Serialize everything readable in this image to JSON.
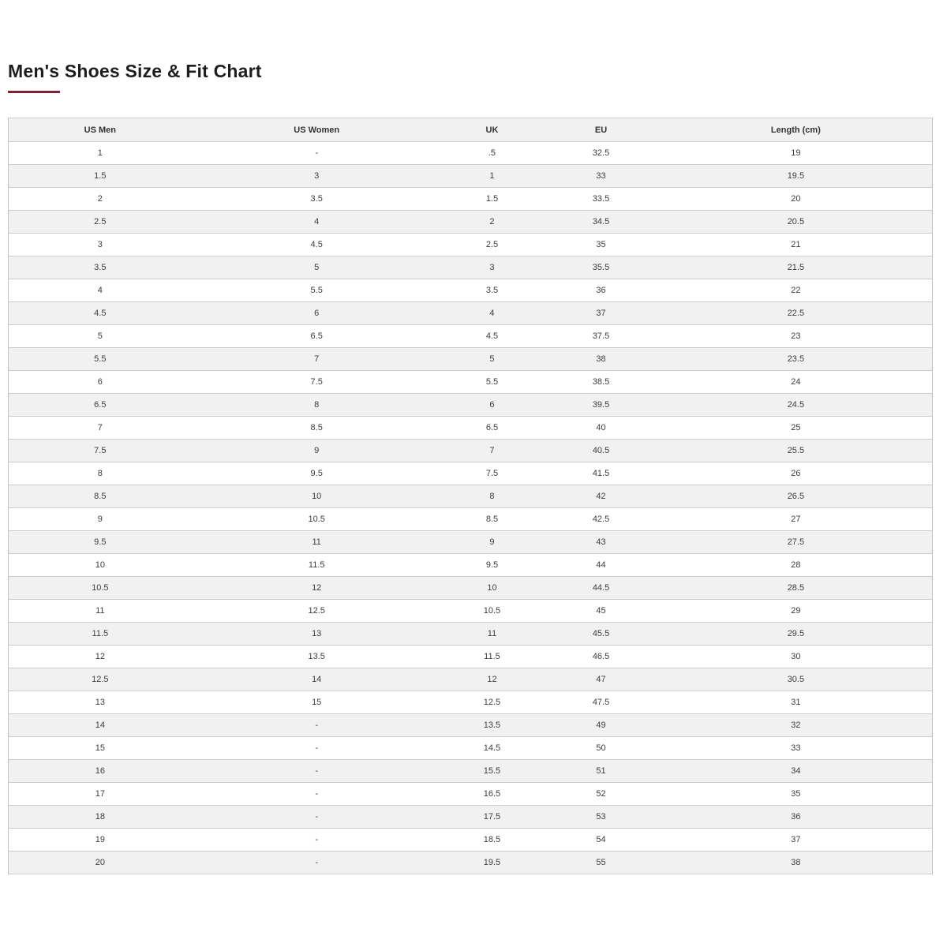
{
  "page": {
    "title": "Men's Shoes Size & Fit Chart"
  },
  "styles": {
    "accent_color": "#7d2231",
    "row_alt_color": "#f1f1f1",
    "border_color": "#cccccc",
    "title_color": "#1d1d1d",
    "cell_text_color": "#3d3d3d"
  },
  "table": {
    "columns": [
      "US Men",
      "US Women",
      "UK",
      "EU",
      "Length (cm)"
    ],
    "rows": [
      [
        "1",
        "-",
        ".5",
        "32.5",
        "19"
      ],
      [
        "1.5",
        "3",
        "1",
        "33",
        "19.5"
      ],
      [
        "2",
        "3.5",
        "1.5",
        "33.5",
        "20"
      ],
      [
        "2.5",
        "4",
        "2",
        "34.5",
        "20.5"
      ],
      [
        "3",
        "4.5",
        "2.5",
        "35",
        "21"
      ],
      [
        "3.5",
        "5",
        "3",
        "35.5",
        "21.5"
      ],
      [
        "4",
        "5.5",
        "3.5",
        "36",
        "22"
      ],
      [
        "4.5",
        "6",
        "4",
        "37",
        "22.5"
      ],
      [
        "5",
        "6.5",
        "4.5",
        "37.5",
        "23"
      ],
      [
        "5.5",
        "7",
        "5",
        "38",
        "23.5"
      ],
      [
        "6",
        "7.5",
        "5.5",
        "38.5",
        "24"
      ],
      [
        "6.5",
        "8",
        "6",
        "39.5",
        "24.5"
      ],
      [
        "7",
        "8.5",
        "6.5",
        "40",
        "25"
      ],
      [
        "7.5",
        "9",
        "7",
        "40.5",
        "25.5"
      ],
      [
        "8",
        "9.5",
        "7.5",
        "41.5",
        "26"
      ],
      [
        "8.5",
        "10",
        "8",
        "42",
        "26.5"
      ],
      [
        "9",
        "10.5",
        "8.5",
        "42.5",
        "27"
      ],
      [
        "9.5",
        "11",
        "9",
        "43",
        "27.5"
      ],
      [
        "10",
        "11.5",
        "9.5",
        "44",
        "28"
      ],
      [
        "10.5",
        "12",
        "10",
        "44.5",
        "28.5"
      ],
      [
        "11",
        "12.5",
        "10.5",
        "45",
        "29"
      ],
      [
        "11.5",
        "13",
        "11",
        "45.5",
        "29.5"
      ],
      [
        "12",
        "13.5",
        "11.5",
        "46.5",
        "30"
      ],
      [
        "12.5",
        "14",
        "12",
        "47",
        "30.5"
      ],
      [
        "13",
        "15",
        "12.5",
        "47.5",
        "31"
      ],
      [
        "14",
        "-",
        "13.5",
        "49",
        "32"
      ],
      [
        "15",
        "-",
        "14.5",
        "50",
        "33"
      ],
      [
        "16",
        "-",
        "15.5",
        "51",
        "34"
      ],
      [
        "17",
        "-",
        "16.5",
        "52",
        "35"
      ],
      [
        "18",
        "-",
        "17.5",
        "53",
        "36"
      ],
      [
        "19",
        "-",
        "18.5",
        "54",
        "37"
      ],
      [
        "20",
        "-",
        "19.5",
        "55",
        "38"
      ]
    ]
  }
}
